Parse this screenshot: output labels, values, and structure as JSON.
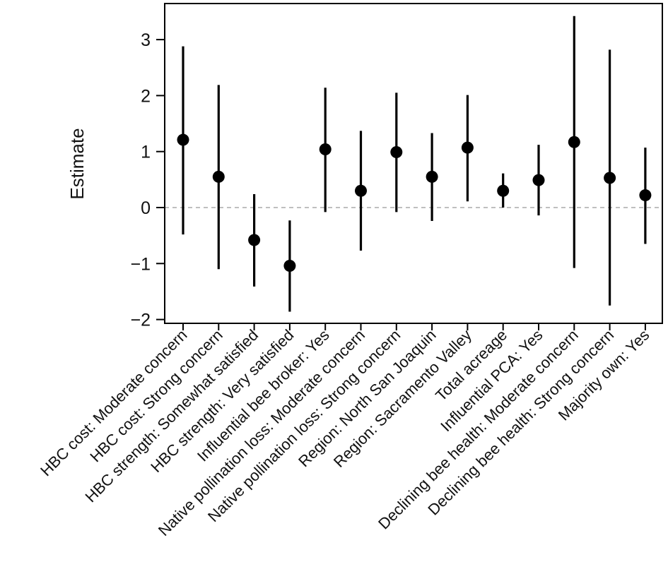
{
  "chart_data": {
    "type": "scatter",
    "title": "",
    "xlabel": "",
    "ylabel": "Estimate",
    "ylim": [
      -2.1,
      3.5
    ],
    "yticks": [
      3,
      2,
      1,
      0,
      -1,
      -2
    ],
    "ytick_labels": [
      "3",
      "2",
      "1",
      "0",
      "−1",
      "−2"
    ],
    "reference_line": {
      "y": 0,
      "style": "dashed",
      "color": "#aaaaaa"
    },
    "grid": false,
    "legend": "none",
    "categories": [
      "HBC cost: Moderate concern",
      "HBC cost: Strong concern",
      "HBC strength: Somewhat satisfied",
      "HBC strength: Very satisfied",
      "Influential bee broker: Yes",
      "Native pollination loss: Moderate concern",
      "Native pollination loss: Strong concern",
      "Region: North San Joaquin",
      "Region: Sacramento Valley",
      "Total acreage",
      "Influential PCA: Yes",
      "Declining bee health: Moderate concern",
      "Declining bee health: Strong concern",
      "Majority own: Yes"
    ],
    "estimates": [
      1.21,
      0.55,
      -0.58,
      -1.04,
      1.04,
      0.3,
      0.99,
      0.55,
      1.07,
      0.3,
      0.49,
      1.17,
      0.53,
      0.22
    ],
    "lower": [
      -0.48,
      -1.1,
      -1.41,
      -1.86,
      -0.08,
      -0.77,
      -0.08,
      -0.24,
      0.11,
      0.0,
      -0.14,
      -1.08,
      -1.75,
      -0.65
    ],
    "upper": [
      2.88,
      2.19,
      0.24,
      -0.23,
      2.14,
      1.37,
      2.05,
      1.33,
      2.01,
      0.61,
      1.12,
      3.42,
      2.82,
      1.07
    ],
    "colors": {
      "marks": "#000000",
      "frame": "#000000",
      "reference": "#aaaaaa"
    }
  }
}
